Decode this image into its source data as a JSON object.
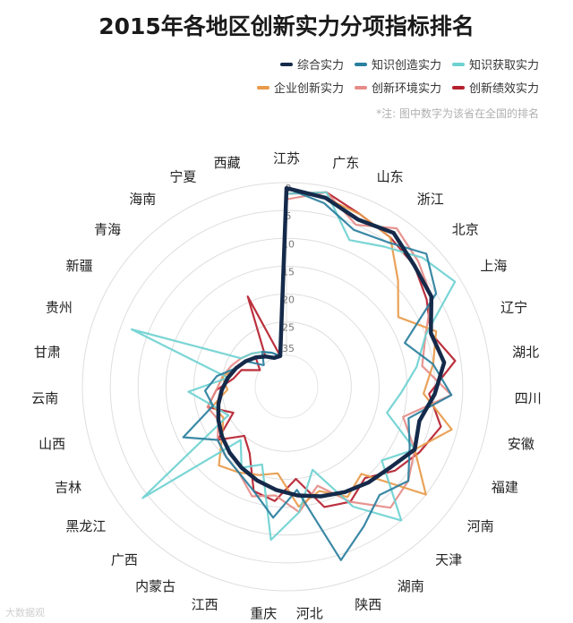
{
  "chart_data": {
    "type": "radar",
    "title": "2015年各地区创新实力分项指标排名",
    "note": "*注: 图中数字为该省在全国的排名",
    "watermark": "大数据观",
    "categories": [
      "江苏",
      "广东",
      "山东",
      "浙江",
      "北京",
      "上海",
      "辽宁",
      "湖北",
      "四川",
      "安徽",
      "福建",
      "河南",
      "天津",
      "湖南",
      "陕西",
      "河北",
      "重庆",
      "江西",
      "内蒙古",
      "广西",
      "黑龙江",
      "吉林",
      "山西",
      "云南",
      "甘肃",
      "贵州",
      "新疆",
      "青海",
      "海南",
      "宁夏",
      "西藏"
    ],
    "radial_ticks": [
      0,
      5,
      10,
      15,
      20,
      25,
      35
    ],
    "radial_range": [
      0,
      31
    ],
    "grid": true,
    "legend_position": "top-right",
    "series": [
      {
        "name": "综合实力",
        "color": "#152a4a",
        "width": 4.5,
        "values": [
          1,
          2,
          4,
          3,
          5,
          6,
          9,
          8,
          10,
          12,
          11,
          13,
          14,
          15,
          16,
          17,
          18,
          19,
          20,
          21,
          22,
          23,
          24,
          25,
          26,
          27,
          28,
          29,
          30,
          31,
          31
        ]
      },
      {
        "name": "知识创造实力",
        "color": "#2a7f9e",
        "width": 2.2,
        "values": [
          1,
          3,
          6,
          5,
          2,
          5,
          14,
          10,
          7,
          14,
          12,
          9,
          11,
          8,
          4,
          18,
          13,
          17,
          19,
          20,
          21,
          16,
          23,
          22,
          24,
          27,
          28,
          31,
          29,
          30,
          31
        ]
      },
      {
        "name": "知识获取实力",
        "color": "#6fd1d1",
        "width": 2.2,
        "values": [
          2,
          1,
          8,
          6,
          3,
          1,
          10,
          13,
          16,
          18,
          11,
          15,
          5,
          12,
          21,
          14,
          9,
          22,
          20,
          24,
          4,
          25,
          23,
          19,
          26,
          7,
          27,
          28,
          29,
          30,
          31
        ]
      },
      {
        "name": "企业创新实力",
        "color": "#e89a4a",
        "width": 2.2,
        "values": [
          1,
          2,
          3,
          4,
          9,
          13,
          8,
          10,
          12,
          6,
          11,
          5,
          16,
          14,
          17,
          15,
          21,
          20,
          19,
          18,
          22,
          24,
          23,
          26,
          25,
          27,
          28,
          29,
          30,
          31,
          31
        ]
      },
      {
        "name": "创新环境实力",
        "color": "#e58c88",
        "width": 2.2,
        "values": [
          3,
          1,
          5,
          2,
          4,
          6,
          10,
          12,
          7,
          15,
          11,
          9,
          8,
          13,
          18,
          14,
          17,
          16,
          19,
          20,
          21,
          23,
          22,
          24,
          25,
          26,
          27,
          28,
          29,
          30,
          31
        ]
      },
      {
        "name": "创新绩效实力",
        "color": "#b5202e",
        "width": 2.2,
        "values": [
          2,
          1,
          3,
          4,
          5,
          7,
          9,
          6,
          11,
          8,
          10,
          12,
          15,
          13,
          14,
          20,
          16,
          17,
          23,
          25,
          21,
          26,
          22,
          24,
          27,
          28,
          31,
          29,
          30,
          19,
          31
        ]
      }
    ]
  }
}
